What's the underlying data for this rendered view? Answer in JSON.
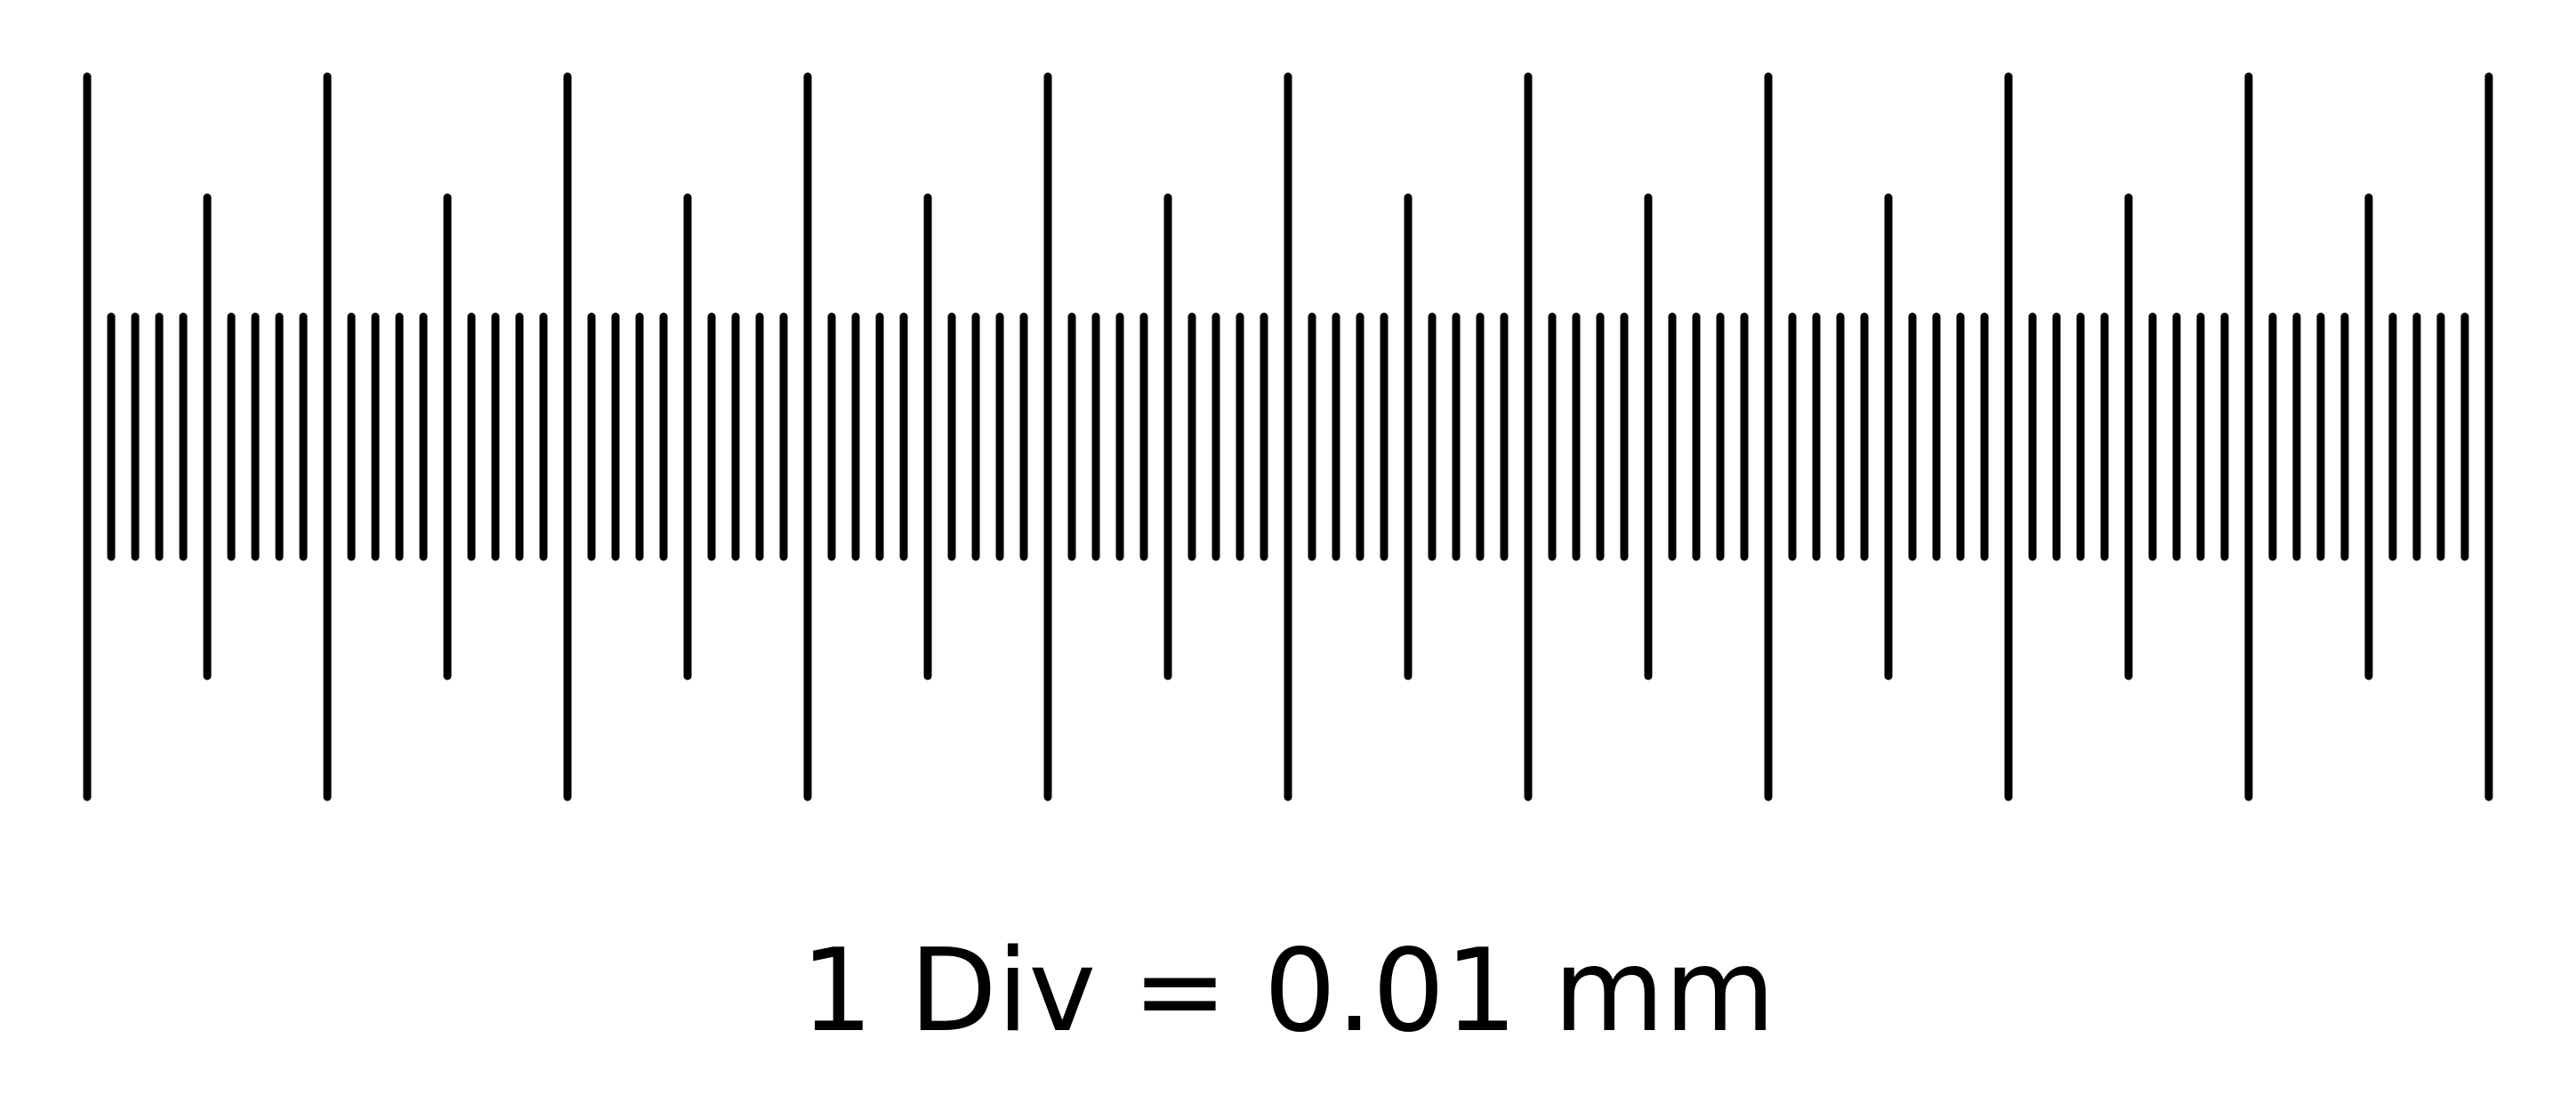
{
  "caption": "1 Div = 0.01 mm",
  "scale": {
    "major_ticks": 11,
    "minor_per_major": 2,
    "divisions_per_minor": 5,
    "total_divisions": 100,
    "tick_color": "#000000",
    "background": "#ffffff"
  }
}
